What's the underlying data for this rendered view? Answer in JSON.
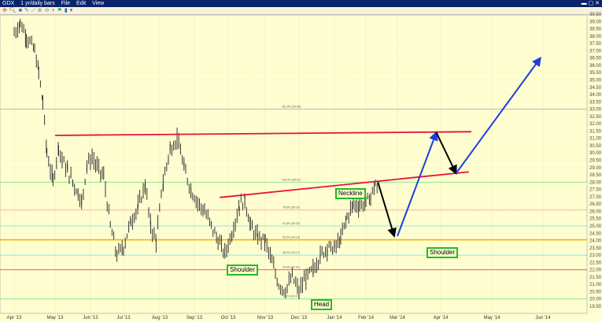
{
  "window": {
    "title": "GDX",
    "period": "1 yr/daily bars",
    "menus": [
      "File",
      "Edit",
      "View"
    ]
  },
  "colors": {
    "bg": "#fffed0",
    "neckline": "#e8103a",
    "support": "#f5b800",
    "up_arrow": "#1a3fe0",
    "down_arrow": "#000000",
    "bars": "#333333"
  },
  "chart_data": {
    "type": "ohlc",
    "title": "GDX 1 yr/daily bars",
    "x_unit": "months since Apr 1 2013",
    "x_tick_labels": [
      "Apr '13",
      "May '13",
      "Jun '13",
      "Jul '13",
      "Aug '13",
      "Sep '13",
      "Oct '13",
      "Nov '13",
      "Dec '13",
      "Jan '14",
      "Feb '14",
      "Mar '14",
      "Apr '14",
      "May '14",
      "Jun '14"
    ],
    "y_tick_labels": [
      "39.50",
      "39.00",
      "38.50",
      "38.00",
      "37.50",
      "37.00",
      "36.50",
      "36.00",
      "35.50",
      "35.00",
      "34.50",
      "34.00",
      "33.50",
      "33.00",
      "32.50",
      "32.00",
      "31.50",
      "31.00",
      "30.50",
      "30.00",
      "29.50",
      "29.00",
      "28.50",
      "28.00",
      "27.50",
      "27.00",
      "26.50",
      "26.00",
      "25.50",
      "25.00",
      "24.50",
      "24.00",
      "23.50",
      "23.00",
      "22.50",
      "22.00",
      "21.50",
      "21.00",
      "20.50",
      "20.00",
      "19.50"
    ],
    "ylim": [
      19.3,
      39.8
    ],
    "price_path": [
      [
        0.0,
        38.2
      ],
      [
        0.15,
        38.9
      ],
      [
        0.3,
        38.0
      ],
      [
        0.5,
        37.0
      ],
      [
        0.6,
        35.5
      ],
      [
        0.7,
        33.5
      ],
      [
        0.8,
        30.0
      ],
      [
        0.95,
        28.0
      ],
      [
        1.1,
        30.5
      ],
      [
        1.2,
        29.5
      ],
      [
        1.35,
        28.8
      ],
      [
        1.5,
        28.0
      ],
      [
        1.65,
        27.3
      ],
      [
        1.75,
        26.6
      ],
      [
        1.9,
        29.2
      ],
      [
        2.05,
        29.7
      ],
      [
        2.2,
        29.0
      ],
      [
        2.4,
        28.4
      ],
      [
        2.6,
        25.0
      ],
      [
        2.8,
        23.0
      ],
      [
        3.0,
        23.6
      ],
      [
        3.2,
        25.3
      ],
      [
        3.4,
        26.3
      ],
      [
        3.6,
        27.8
      ],
      [
        3.75,
        25.0
      ],
      [
        3.9,
        24.0
      ],
      [
        4.1,
        28.0
      ],
      [
        4.3,
        30.3
      ],
      [
        4.5,
        31.0
      ],
      [
        4.7,
        29.0
      ],
      [
        4.9,
        27.5
      ],
      [
        5.1,
        26.6
      ],
      [
        5.3,
        26.0
      ],
      [
        5.5,
        25.0
      ],
      [
        5.7,
        24.0
      ],
      [
        5.9,
        23.1
      ],
      [
        6.1,
        24.5
      ],
      [
        6.3,
        26.4
      ],
      [
        6.45,
        26.8
      ],
      [
        6.6,
        25.0
      ],
      [
        6.8,
        24.2
      ],
      [
        7.0,
        24.0
      ],
      [
        7.2,
        22.5
      ],
      [
        7.4,
        21.0
      ],
      [
        7.6,
        20.6
      ],
      [
        7.8,
        21.5
      ],
      [
        8.0,
        20.5
      ],
      [
        8.2,
        21.5
      ],
      [
        8.4,
        22.0
      ],
      [
        8.6,
        23.0
      ],
      [
        8.8,
        23.5
      ],
      [
        9.0,
        23.5
      ],
      [
        9.2,
        24.1
      ],
      [
        9.4,
        25.6
      ],
      [
        9.6,
        26.5
      ],
      [
        9.8,
        26.4
      ],
      [
        10.0,
        26.6
      ],
      [
        10.15,
        27.0
      ],
      [
        10.3,
        27.9
      ],
      [
        10.38,
        27.1
      ]
    ],
    "fib_levels": [
      {
        "label": "161.8% (33.08)",
        "price": 33.0,
        "color": "#b8b8b8"
      },
      {
        "label": "100.0% (28.07)",
        "price": 28.0,
        "color": "#88e888"
      },
      {
        "label": "78.6% (26.10)",
        "price": 26.1,
        "color": "#f4b8a0"
      },
      {
        "label": "61.8% (25.03)",
        "price": 25.0,
        "color": "#88e8e0"
      },
      {
        "label": "50.0% (24.10)",
        "price": 24.05,
        "color": "#f5b800"
      },
      {
        "label": "38.2% (23.17)",
        "price": 23.0,
        "color": "#88e8e0"
      },
      {
        "label": "23.6% (22.01)",
        "price": 22.0,
        "color": "#f06060"
      },
      {
        "label": "0.0% (20.07)",
        "price": 20.0,
        "color": "#88e888"
      }
    ],
    "annotations": [
      {
        "type": "line",
        "name": "neckline-horizontal",
        "from": [
          1.0,
          31.2
        ],
        "to": [
          12.6,
          31.45
        ],
        "color": "#e8103a"
      },
      {
        "type": "line",
        "name": "neckline-sloped",
        "from": [
          5.75,
          26.95
        ],
        "to": [
          12.55,
          28.7
        ],
        "color": "#e8103a"
      },
      {
        "type": "arrow",
        "name": "down-arrow-1",
        "from": [
          10.38,
          28.0
        ],
        "to": [
          10.9,
          24.3
        ],
        "color": "#000000"
      },
      {
        "type": "arrow",
        "name": "up-arrow-1",
        "from": [
          11.0,
          24.3
        ],
        "to": [
          11.9,
          31.4
        ],
        "color": "#1a3fe0"
      },
      {
        "type": "arrow",
        "name": "down-arrow-2",
        "from": [
          11.9,
          31.4
        ],
        "to": [
          12.3,
          28.6
        ],
        "color": "#000000"
      },
      {
        "type": "arrow",
        "name": "up-arrow-2",
        "from": [
          12.3,
          28.6
        ],
        "to": [
          13.95,
          36.5
        ],
        "color": "#1a3fe0"
      }
    ],
    "labels": {
      "neckline": "Neckline",
      "left_shoulder": "Shoulder",
      "head": "Head",
      "right_shoulder": "Shoulder"
    }
  }
}
